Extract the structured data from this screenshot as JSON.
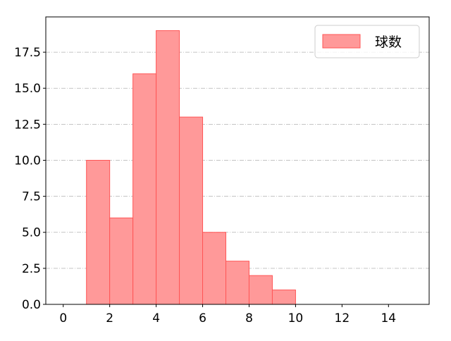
{
  "chart_data": {
    "type": "bar",
    "subtype": "histogram",
    "bins": [
      [
        1,
        2
      ],
      [
        2,
        3
      ],
      [
        3,
        4
      ],
      [
        4,
        5
      ],
      [
        5,
        6
      ],
      [
        6,
        7
      ],
      [
        7,
        8
      ],
      [
        8,
        9
      ],
      [
        9,
        10
      ]
    ],
    "series": [
      {
        "name": "球数",
        "values": [
          10,
          6,
          16,
          19,
          13,
          5,
          3,
          2,
          1
        ]
      }
    ],
    "xlim": [
      -0.75,
      15.75
    ],
    "ylim": [
      0,
      19.95
    ],
    "xticks": [
      0,
      2,
      4,
      6,
      8,
      10,
      12,
      14
    ],
    "xtick_labels": [
      "0",
      "2",
      "4",
      "6",
      "8",
      "10",
      "12",
      "14"
    ],
    "yticks": [
      0,
      2.5,
      5,
      7.5,
      10,
      12.5,
      15,
      17.5
    ],
    "ytick_labels": [
      "0.0",
      "2.5",
      "5.0",
      "7.5",
      "10.0",
      "12.5",
      "15.0",
      "17.5"
    ],
    "grid": {
      "y": true,
      "x": false,
      "style": "dash-dot"
    },
    "legend": {
      "placement": "top-right",
      "entries": [
        "球数"
      ]
    },
    "colors": {
      "bar_fill": "#ff9999",
      "bar_edge": "#ff5555",
      "grid": "#b0b0b0"
    }
  }
}
